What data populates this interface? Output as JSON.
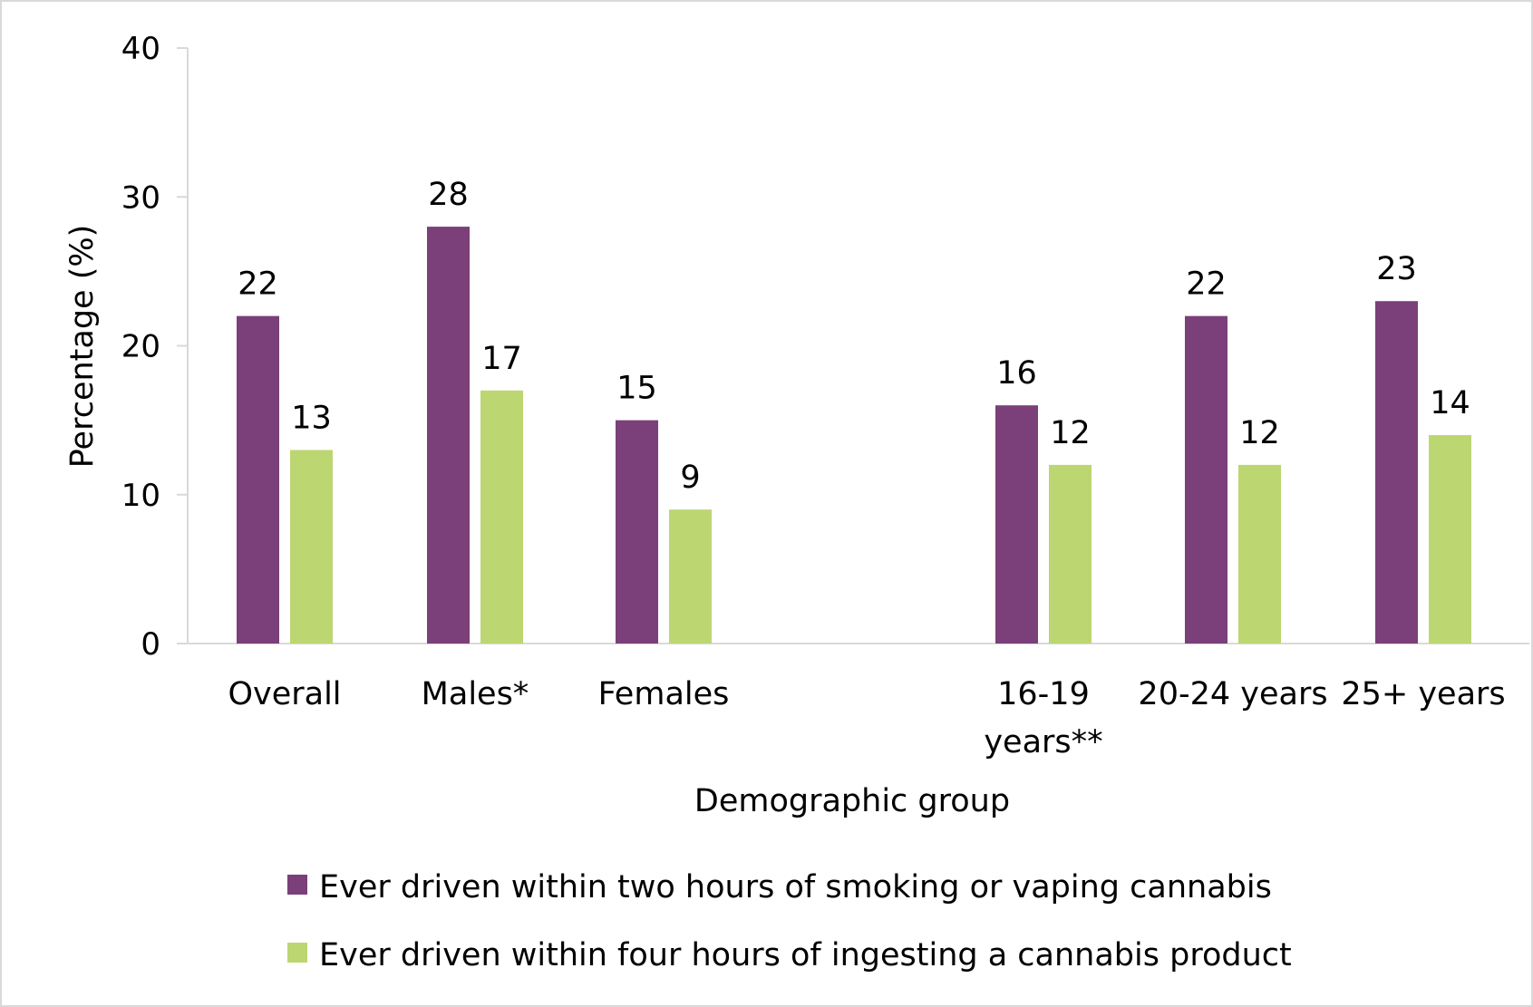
{
  "chart_data": {
    "type": "bar",
    "title": "",
    "xlabel": "Demographic group",
    "ylabel": "Percentage (%)",
    "ylim": [
      0,
      40
    ],
    "yticks": [
      0,
      10,
      20,
      30,
      40
    ],
    "grid": false,
    "legend_placement": "bottom",
    "categories": [
      [
        "Overall"
      ],
      [
        "Males*"
      ],
      [
        "Females"
      ],
      [
        "16-19",
        "years**"
      ],
      [
        "20-24 years"
      ],
      [
        "25+ years"
      ]
    ],
    "series": [
      {
        "name": "Ever driven within two hours of smoking or vaping cannabis",
        "color": "#7b3f7a",
        "values": [
          22,
          28,
          15,
          16,
          22,
          23
        ]
      },
      {
        "name": "Ever driven within four hours of ingesting a cannabis product",
        "color": "#bcd672",
        "values": [
          13,
          17,
          9,
          12,
          12,
          14
        ]
      }
    ]
  }
}
